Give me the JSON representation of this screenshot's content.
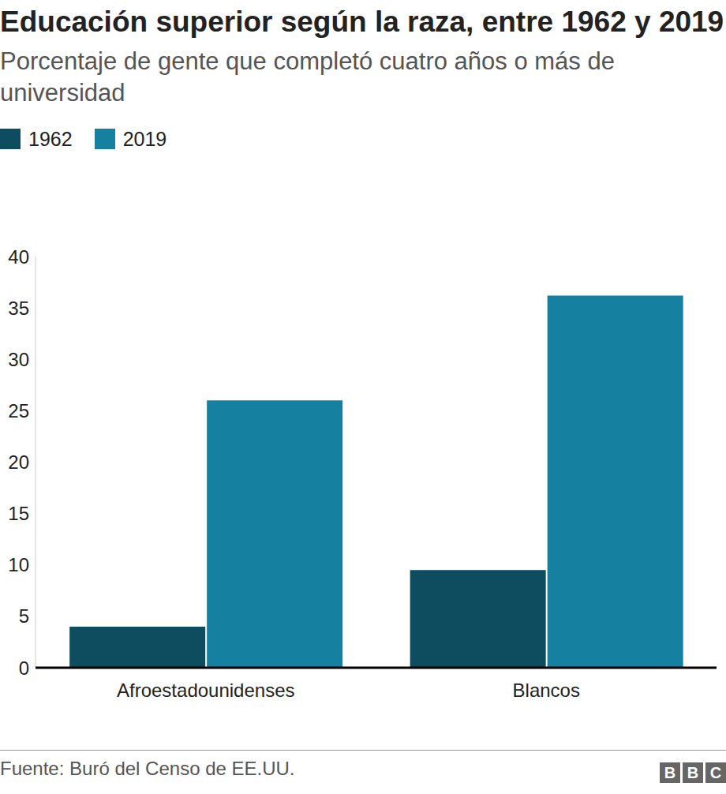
{
  "chart_data": {
    "type": "bar",
    "title": "Educación superior según la raza, entre 1962 y 2019",
    "subtitle": "Porcentaje de gente que completó cuatro años o más de universidad",
    "categories": [
      "Afroestadounidenses",
      "Blancos"
    ],
    "series": [
      {
        "name": "1962",
        "color": "#0d4d5f",
        "values": [
          4,
          9.5
        ]
      },
      {
        "name": "2019",
        "color": "#1580a0",
        "values": [
          26,
          36.2
        ]
      }
    ],
    "ylim": [
      0,
      40
    ],
    "yticks": [
      0,
      5,
      10,
      15,
      20,
      25,
      30,
      35,
      40
    ],
    "grid": false,
    "legend": "top-left",
    "source": "Fuente: Buró del Censo de EE.UU.",
    "logo": "BBC"
  }
}
